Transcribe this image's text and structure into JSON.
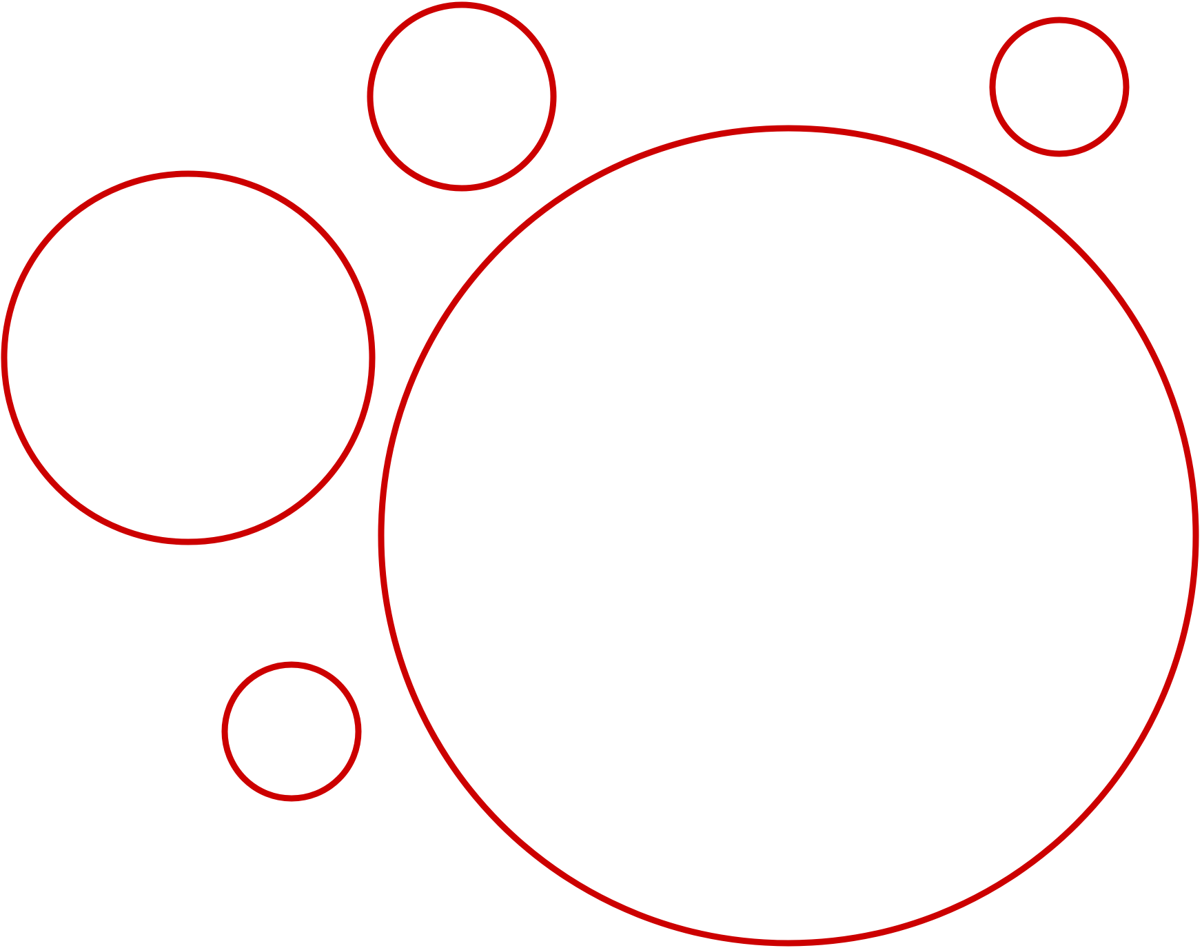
{
  "colors": {
    "stroke": "#cc0000",
    "background": "#ffffff"
  },
  "shapes": [
    {
      "name": "circle-top-center-small",
      "kind": "circle"
    },
    {
      "name": "circle-top-right-small",
      "kind": "circle"
    },
    {
      "name": "circle-left-medium",
      "kind": "circle"
    },
    {
      "name": "circle-large",
      "kind": "circle"
    },
    {
      "name": "circle-bottom-left-small",
      "kind": "circle"
    }
  ]
}
